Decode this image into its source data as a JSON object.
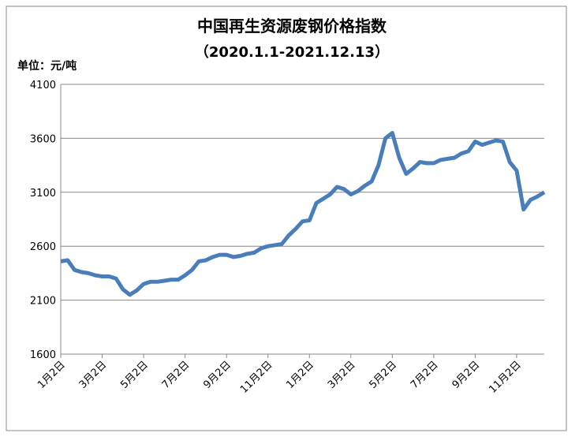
{
  "chart_data": {
    "type": "line",
    "title": "中国再生资源废钢价格指数",
    "subtitle": "（2020.1.1-2021.12.13）",
    "y_label": "单位：元/吨",
    "categories": [
      "1月2日",
      null,
      null,
      null,
      null,
      null,
      "3月2日",
      null,
      null,
      null,
      null,
      null,
      "5月2日",
      null,
      null,
      null,
      null,
      null,
      "7月2日",
      null,
      null,
      null,
      null,
      null,
      "9月2日",
      null,
      null,
      null,
      null,
      null,
      "11月2日",
      null,
      null,
      null,
      null,
      null,
      "1月2日",
      null,
      null,
      null,
      null,
      null,
      "3月2日",
      null,
      null,
      null,
      null,
      null,
      "5月2日",
      null,
      null,
      null,
      null,
      null,
      "7月2日",
      null,
      null,
      null,
      null,
      null,
      "9月2日",
      null,
      null,
      null,
      null,
      null,
      "11月2日",
      null,
      null,
      null,
      null
    ],
    "series": [
      {
        "name": "中国再生资源废钢价格指数",
        "color": "#4a7ebb",
        "values": [
          2460,
          2470,
          2380,
          2360,
          2350,
          2330,
          2320,
          2320,
          2300,
          2200,
          2150,
          2190,
          2250,
          2270,
          2270,
          2280,
          2290,
          2290,
          2330,
          2380,
          2460,
          2470,
          2500,
          2520,
          2520,
          2500,
          2510,
          2530,
          2540,
          2580,
          2600,
          2610,
          2620,
          2700,
          2760,
          2830,
          2840,
          3000,
          3040,
          3080,
          3150,
          3130,
          3080,
          3110,
          3160,
          3200,
          3350,
          3600,
          3650,
          3420,
          3270,
          3320,
          3380,
          3370,
          3370,
          3400,
          3410,
          3420,
          3460,
          3480,
          3570,
          3540,
          3560,
          3580,
          3570,
          3380,
          3300,
          2940,
          3030,
          3060,
          3100
        ]
      }
    ],
    "ylim": [
      1600,
      4100
    ],
    "yticks": [
      1600,
      2100,
      2600,
      3100,
      3600,
      4100
    ],
    "grid": true
  }
}
